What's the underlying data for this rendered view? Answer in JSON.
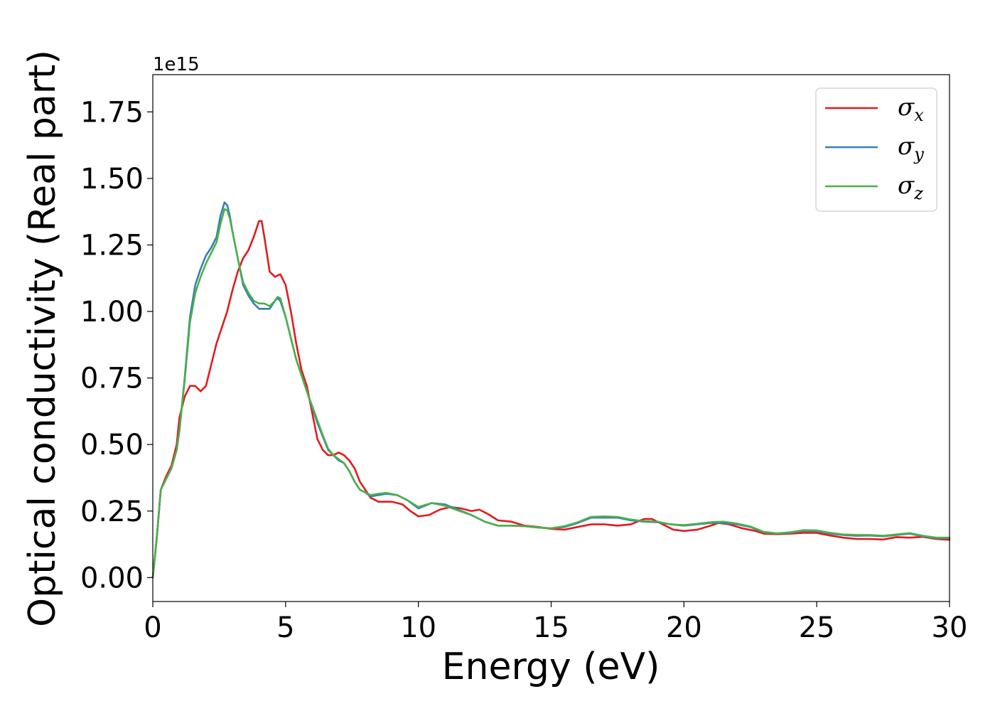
{
  "chart_data": {
    "type": "line",
    "xlabel": "Energy (eV)",
    "ylabel": "Optical conductivity (Real part)",
    "y_offset_label": "1e15",
    "xlim": [
      0,
      30
    ],
    "ylim": [
      -0.09,
      1.89
    ],
    "x_ticks": [
      0,
      5,
      10,
      15,
      20,
      25,
      30
    ],
    "y_ticks": [
      0.0,
      0.25,
      0.5,
      0.75,
      1.0,
      1.25,
      1.5,
      1.75
    ],
    "x_tick_labels": [
      "0",
      "5",
      "10",
      "15",
      "20",
      "25",
      "30"
    ],
    "y_tick_labels": [
      "0.00",
      "0.25",
      "0.50",
      "0.75",
      "1.00",
      "1.25",
      "1.50",
      "1.75"
    ],
    "grid": false,
    "legend_position": "top-right",
    "series": [
      {
        "name": "σx",
        "label_main": "σ",
        "label_sub": "x",
        "color": "#e41a1c",
        "points": [
          [
            0,
            0
          ],
          [
            0.15,
            0.15
          ],
          [
            0.3,
            0.33
          ],
          [
            0.5,
            0.38
          ],
          [
            0.7,
            0.42
          ],
          [
            0.9,
            0.5
          ],
          [
            1.0,
            0.6
          ],
          [
            1.2,
            0.68
          ],
          [
            1.4,
            0.72
          ],
          [
            1.6,
            0.72
          ],
          [
            1.8,
            0.7
          ],
          [
            2.0,
            0.72
          ],
          [
            2.2,
            0.8
          ],
          [
            2.4,
            0.88
          ],
          [
            2.6,
            0.94
          ],
          [
            2.8,
            1.0
          ],
          [
            3.0,
            1.08
          ],
          [
            3.2,
            1.15
          ],
          [
            3.4,
            1.2
          ],
          [
            3.6,
            1.23
          ],
          [
            3.8,
            1.28
          ],
          [
            4.0,
            1.34
          ],
          [
            4.1,
            1.34
          ],
          [
            4.2,
            1.28
          ],
          [
            4.4,
            1.15
          ],
          [
            4.6,
            1.13
          ],
          [
            4.8,
            1.14
          ],
          [
            5.0,
            1.1
          ],
          [
            5.2,
            1.0
          ],
          [
            5.4,
            0.88
          ],
          [
            5.6,
            0.78
          ],
          [
            5.8,
            0.72
          ],
          [
            6.0,
            0.62
          ],
          [
            6.2,
            0.52
          ],
          [
            6.4,
            0.48
          ],
          [
            6.6,
            0.46
          ],
          [
            6.8,
            0.46
          ],
          [
            7.0,
            0.47
          ],
          [
            7.2,
            0.46
          ],
          [
            7.4,
            0.44
          ],
          [
            7.6,
            0.41
          ],
          [
            7.8,
            0.36
          ],
          [
            8.0,
            0.33
          ],
          [
            8.2,
            0.3
          ],
          [
            8.5,
            0.285
          ],
          [
            9.0,
            0.285
          ],
          [
            9.4,
            0.275
          ],
          [
            9.7,
            0.25
          ],
          [
            10.0,
            0.23
          ],
          [
            10.4,
            0.235
          ],
          [
            10.8,
            0.255
          ],
          [
            11.2,
            0.265
          ],
          [
            11.6,
            0.26
          ],
          [
            12.0,
            0.25
          ],
          [
            12.3,
            0.255
          ],
          [
            12.6,
            0.24
          ],
          [
            13.0,
            0.215
          ],
          [
            13.5,
            0.21
          ],
          [
            14.0,
            0.195
          ],
          [
            14.5,
            0.19
          ],
          [
            15.0,
            0.183
          ],
          [
            15.5,
            0.18
          ],
          [
            16.0,
            0.19
          ],
          [
            16.5,
            0.2
          ],
          [
            17.0,
            0.2
          ],
          [
            17.5,
            0.195
          ],
          [
            18.0,
            0.2
          ],
          [
            18.5,
            0.22
          ],
          [
            18.8,
            0.22
          ],
          [
            19.2,
            0.2
          ],
          [
            19.6,
            0.18
          ],
          [
            20.0,
            0.175
          ],
          [
            20.5,
            0.18
          ],
          [
            21.0,
            0.195
          ],
          [
            21.3,
            0.205
          ],
          [
            21.7,
            0.2
          ],
          [
            22.2,
            0.185
          ],
          [
            22.7,
            0.175
          ],
          [
            23.0,
            0.165
          ],
          [
            23.5,
            0.163
          ],
          [
            24.0,
            0.165
          ],
          [
            24.5,
            0.168
          ],
          [
            25.0,
            0.168
          ],
          [
            25.5,
            0.158
          ],
          [
            26.0,
            0.15
          ],
          [
            26.5,
            0.145
          ],
          [
            27.0,
            0.145
          ],
          [
            27.5,
            0.143
          ],
          [
            28.0,
            0.152
          ],
          [
            28.5,
            0.15
          ],
          [
            29.0,
            0.153
          ],
          [
            29.5,
            0.145
          ],
          [
            30.0,
            0.142
          ]
        ]
      },
      {
        "name": "σy",
        "label_main": "σ",
        "label_sub": "y",
        "color": "#377eb8",
        "points": [
          [
            0,
            0
          ],
          [
            0.15,
            0.15
          ],
          [
            0.3,
            0.33
          ],
          [
            0.5,
            0.37
          ],
          [
            0.7,
            0.41
          ],
          [
            0.9,
            0.48
          ],
          [
            1.0,
            0.55
          ],
          [
            1.2,
            0.75
          ],
          [
            1.4,
            0.98
          ],
          [
            1.6,
            1.1
          ],
          [
            1.8,
            1.16
          ],
          [
            2.0,
            1.21
          ],
          [
            2.2,
            1.24
          ],
          [
            2.4,
            1.28
          ],
          [
            2.55,
            1.36
          ],
          [
            2.7,
            1.41
          ],
          [
            2.8,
            1.4
          ],
          [
            2.9,
            1.36
          ],
          [
            3.0,
            1.3
          ],
          [
            3.2,
            1.2
          ],
          [
            3.4,
            1.1
          ],
          [
            3.6,
            1.06
          ],
          [
            3.8,
            1.03
          ],
          [
            4.0,
            1.01
          ],
          [
            4.2,
            1.01
          ],
          [
            4.4,
            1.01
          ],
          [
            4.6,
            1.04
          ],
          [
            4.7,
            1.05
          ],
          [
            4.8,
            1.04
          ],
          [
            5.0,
            0.98
          ],
          [
            5.2,
            0.9
          ],
          [
            5.4,
            0.82
          ],
          [
            5.6,
            0.76
          ],
          [
            5.8,
            0.7
          ],
          [
            6.0,
            0.64
          ],
          [
            6.2,
            0.58
          ],
          [
            6.4,
            0.53
          ],
          [
            6.6,
            0.48
          ],
          [
            6.8,
            0.46
          ],
          [
            7.0,
            0.44
          ],
          [
            7.2,
            0.43
          ],
          [
            7.4,
            0.4
          ],
          [
            7.6,
            0.36
          ],
          [
            7.8,
            0.33
          ],
          [
            8.0,
            0.32
          ],
          [
            8.2,
            0.305
          ],
          [
            8.5,
            0.31
          ],
          [
            8.8,
            0.315
          ],
          [
            9.2,
            0.31
          ],
          [
            9.6,
            0.29
          ],
          [
            10.0,
            0.26
          ],
          [
            10.5,
            0.28
          ],
          [
            11.0,
            0.275
          ],
          [
            11.5,
            0.255
          ],
          [
            12.0,
            0.235
          ],
          [
            12.5,
            0.21
          ],
          [
            13.0,
            0.195
          ],
          [
            13.5,
            0.195
          ],
          [
            14.0,
            0.193
          ],
          [
            14.5,
            0.188
          ],
          [
            15.0,
            0.185
          ],
          [
            15.5,
            0.19
          ],
          [
            16.0,
            0.205
          ],
          [
            16.5,
            0.225
          ],
          [
            17.0,
            0.225
          ],
          [
            17.5,
            0.225
          ],
          [
            18.0,
            0.215
          ],
          [
            18.5,
            0.21
          ],
          [
            19.0,
            0.208
          ],
          [
            19.5,
            0.2
          ],
          [
            20.0,
            0.195
          ],
          [
            20.5,
            0.2
          ],
          [
            21.0,
            0.205
          ],
          [
            21.5,
            0.205
          ],
          [
            22.0,
            0.2
          ],
          [
            22.5,
            0.19
          ],
          [
            23.0,
            0.17
          ],
          [
            23.5,
            0.165
          ],
          [
            24.0,
            0.168
          ],
          [
            24.5,
            0.175
          ],
          [
            25.0,
            0.175
          ],
          [
            25.5,
            0.165
          ],
          [
            26.0,
            0.16
          ],
          [
            26.5,
            0.157
          ],
          [
            27.0,
            0.158
          ],
          [
            27.5,
            0.155
          ],
          [
            28.0,
            0.16
          ],
          [
            28.5,
            0.165
          ],
          [
            29.0,
            0.155
          ],
          [
            29.5,
            0.148
          ],
          [
            30.0,
            0.148
          ]
        ]
      },
      {
        "name": "σz",
        "label_main": "σ",
        "label_sub": "z",
        "color": "#4daf4a",
        "points": [
          [
            0,
            0
          ],
          [
            0.15,
            0.15
          ],
          [
            0.3,
            0.33
          ],
          [
            0.5,
            0.37
          ],
          [
            0.7,
            0.41
          ],
          [
            0.9,
            0.48
          ],
          [
            1.0,
            0.55
          ],
          [
            1.2,
            0.74
          ],
          [
            1.4,
            0.96
          ],
          [
            1.6,
            1.07
          ],
          [
            1.8,
            1.13
          ],
          [
            2.0,
            1.18
          ],
          [
            2.2,
            1.22
          ],
          [
            2.4,
            1.26
          ],
          [
            2.55,
            1.33
          ],
          [
            2.7,
            1.385
          ],
          [
            2.8,
            1.38
          ],
          [
            2.9,
            1.35
          ],
          [
            3.0,
            1.3
          ],
          [
            3.2,
            1.2
          ],
          [
            3.4,
            1.11
          ],
          [
            3.6,
            1.07
          ],
          [
            3.8,
            1.04
          ],
          [
            4.0,
            1.03
          ],
          [
            4.2,
            1.03
          ],
          [
            4.4,
            1.02
          ],
          [
            4.6,
            1.04
          ],
          [
            4.7,
            1.055
          ],
          [
            4.8,
            1.05
          ],
          [
            5.0,
            0.98
          ],
          [
            5.2,
            0.9
          ],
          [
            5.4,
            0.82
          ],
          [
            5.6,
            0.76
          ],
          [
            5.8,
            0.7
          ],
          [
            6.0,
            0.645
          ],
          [
            6.2,
            0.59
          ],
          [
            6.4,
            0.535
          ],
          [
            6.6,
            0.485
          ],
          [
            6.8,
            0.46
          ],
          [
            7.0,
            0.445
          ],
          [
            7.2,
            0.43
          ],
          [
            7.4,
            0.4
          ],
          [
            7.6,
            0.36
          ],
          [
            7.8,
            0.33
          ],
          [
            8.0,
            0.32
          ],
          [
            8.2,
            0.31
          ],
          [
            8.5,
            0.315
          ],
          [
            8.8,
            0.318
          ],
          [
            9.2,
            0.31
          ],
          [
            9.6,
            0.29
          ],
          [
            10.0,
            0.265
          ],
          [
            10.5,
            0.28
          ],
          [
            11.0,
            0.27
          ],
          [
            11.5,
            0.252
          ],
          [
            12.0,
            0.235
          ],
          [
            12.5,
            0.21
          ],
          [
            13.0,
            0.195
          ],
          [
            13.5,
            0.195
          ],
          [
            14.0,
            0.193
          ],
          [
            14.5,
            0.188
          ],
          [
            15.0,
            0.185
          ],
          [
            15.5,
            0.193
          ],
          [
            16.0,
            0.208
          ],
          [
            16.5,
            0.228
          ],
          [
            17.0,
            0.23
          ],
          [
            17.5,
            0.228
          ],
          [
            18.0,
            0.218
          ],
          [
            18.5,
            0.212
          ],
          [
            19.0,
            0.21
          ],
          [
            19.5,
            0.2
          ],
          [
            20.0,
            0.197
          ],
          [
            20.5,
            0.202
          ],
          [
            21.0,
            0.208
          ],
          [
            21.5,
            0.21
          ],
          [
            22.0,
            0.203
          ],
          [
            22.5,
            0.192
          ],
          [
            23.0,
            0.172
          ],
          [
            23.5,
            0.166
          ],
          [
            24.0,
            0.17
          ],
          [
            24.5,
            0.178
          ],
          [
            25.0,
            0.177
          ],
          [
            25.5,
            0.168
          ],
          [
            26.0,
            0.162
          ],
          [
            26.5,
            0.16
          ],
          [
            27.0,
            0.16
          ],
          [
            27.5,
            0.157
          ],
          [
            28.0,
            0.162
          ],
          [
            28.5,
            0.167
          ],
          [
            29.0,
            0.157
          ],
          [
            29.5,
            0.15
          ],
          [
            30.0,
            0.15
          ]
        ]
      }
    ]
  }
}
